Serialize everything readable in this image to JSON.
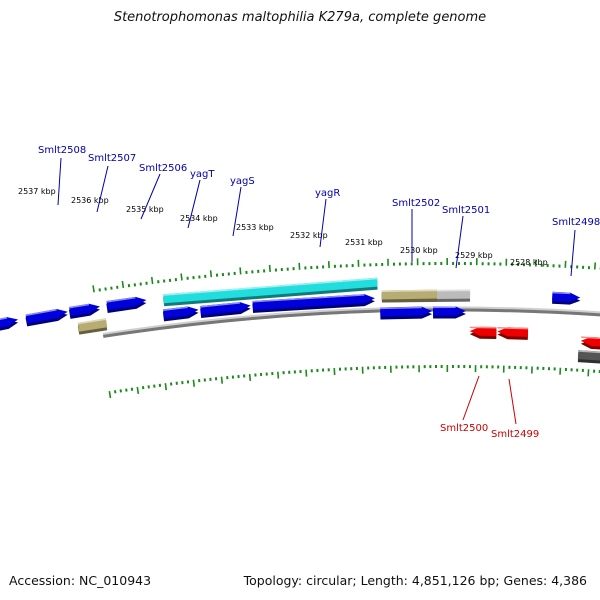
{
  "title": "Stenotrophomonas maltophilia K279a, complete genome",
  "accession": "Accession: NC_010943",
  "topology": "Topology: circular; Length: 4,851,126 bp; Genes: 4,386",
  "colors": {
    "forward_gene": "#0000dd",
    "reverse_gene": "#ee0000",
    "highlight_gene": "#22dddd",
    "tan_gene": "#b7ad74",
    "gray_gene": "#bbbbbb",
    "dark_gene": "#555555",
    "tick_green": "#1c8a1c",
    "backbone": "#777777",
    "forward_label": "#0000aa",
    "reverse_label": "#cc0000"
  },
  "kbp_labels": [
    "2537 kbp",
    "2536 kbp",
    "2535 kbp",
    "2534 kbp",
    "2533 kbp",
    "2532 kbp",
    "2531 kbp",
    "2530 kbp",
    "2529 kbp",
    "2528 kbp"
  ],
  "forward_labels": [
    "Smlt2508",
    "Smlt2507",
    "Smlt2506",
    "yagT",
    "yagS",
    "yagR",
    "Smlt2502",
    "Smlt2501",
    "Smlt2498"
  ],
  "reverse_labels": [
    "Smlt2500",
    "Smlt2499"
  ]
}
